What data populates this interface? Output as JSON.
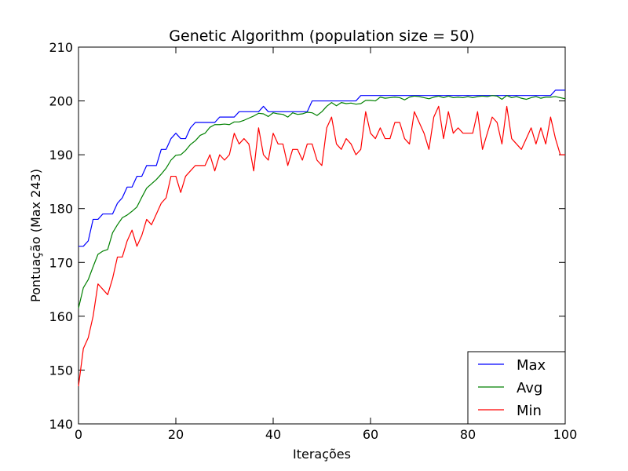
{
  "chart_data": {
    "type": "line",
    "title": "Genetic Algorithm (population size = 50)",
    "xlabel": "Iterações",
    "ylabel": "Pontuação (Max 243)",
    "xlim": [
      0,
      100
    ],
    "ylim": [
      140,
      210
    ],
    "xticks": [
      0,
      20,
      40,
      60,
      80,
      100
    ],
    "yticks": [
      140,
      150,
      160,
      170,
      180,
      190,
      200,
      210
    ],
    "grid": false,
    "legend_position": "bottom-right",
    "series": [
      {
        "name": "Max",
        "color": "#0000ff",
        "values": [
          173,
          173,
          174,
          178,
          178,
          179,
          179,
          179,
          181,
          182,
          184,
          184,
          186,
          186,
          188,
          188,
          188,
          191,
          191,
          193,
          194,
          193,
          193,
          195,
          196,
          196,
          196,
          196,
          196,
          197,
          197,
          197,
          197,
          198,
          198,
          198,
          198,
          198,
          199,
          198,
          198,
          198,
          198,
          198,
          198,
          198,
          198,
          198,
          200,
          200,
          200,
          200,
          200,
          200,
          200,
          200,
          200,
          200,
          201,
          201,
          201,
          201,
          201,
          201,
          201,
          201,
          201,
          201,
          201,
          201,
          201,
          201,
          201,
          201,
          201,
          201,
          201,
          201,
          201,
          201,
          201,
          201,
          201,
          201,
          201,
          201,
          201,
          201,
          201,
          201,
          201,
          201,
          201,
          201,
          201,
          201,
          201,
          201,
          202,
          202,
          202
        ]
      },
      {
        "name": "Avg",
        "color": "#008000",
        "values": [
          161.5,
          165.3,
          166.8,
          169.2,
          171.5,
          172.1,
          172.4,
          175.5,
          177.0,
          178.3,
          178.8,
          179.5,
          180.3,
          182.1,
          183.8,
          184.6,
          185.4,
          186.4,
          187.5,
          189.0,
          189.9,
          190.0,
          190.8,
          191.9,
          192.6,
          193.6,
          194.0,
          195.1,
          195.6,
          195.6,
          195.7,
          195.6,
          196.1,
          196.1,
          196.4,
          196.8,
          197.2,
          197.7,
          197.6,
          197.1,
          197.8,
          197.6,
          197.5,
          197.0,
          197.8,
          197.5,
          197.6,
          197.9,
          197.8,
          197.3,
          198.0,
          199.0,
          199.7,
          199.1,
          199.7,
          199.5,
          199.6,
          199.4,
          199.5,
          200.1,
          200.1,
          200.0,
          200.7,
          200.5,
          200.6,
          200.7,
          200.6,
          200.2,
          200.7,
          200.9,
          200.8,
          200.6,
          200.4,
          200.7,
          200.9,
          200.6,
          200.9,
          200.6,
          200.7,
          200.6,
          200.8,
          200.6,
          200.8,
          200.9,
          200.8,
          201.0,
          200.9,
          200.3,
          201.0,
          200.6,
          200.8,
          200.5,
          200.3,
          200.6,
          200.8,
          200.5,
          200.7,
          200.7,
          200.8,
          200.6,
          200.4
        ]
      },
      {
        "name": "Min",
        "color": "#ff0000",
        "values": [
          147,
          154,
          156,
          160,
          166,
          165,
          164,
          167,
          171,
          171,
          174,
          176,
          173,
          175,
          178,
          177,
          179,
          181,
          182,
          186,
          186,
          183,
          186,
          187,
          188,
          188,
          188,
          190,
          187,
          190,
          189,
          190,
          194,
          192,
          193,
          192,
          187,
          195,
          190,
          189,
          194,
          192,
          192,
          188,
          191,
          191,
          189,
          192,
          192,
          189,
          188,
          195,
          197,
          192,
          191,
          193,
          192,
          190,
          191,
          198,
          194,
          193,
          195,
          193,
          193,
          196,
          196,
          193,
          192,
          198,
          196,
          194,
          191,
          197,
          199,
          193,
          198,
          194,
          195,
          194,
          194,
          194,
          198,
          191,
          194,
          197,
          196,
          192,
          199,
          193,
          192,
          191,
          193,
          195,
          192,
          195,
          192,
          197,
          193,
          190,
          190
        ]
      }
    ]
  }
}
